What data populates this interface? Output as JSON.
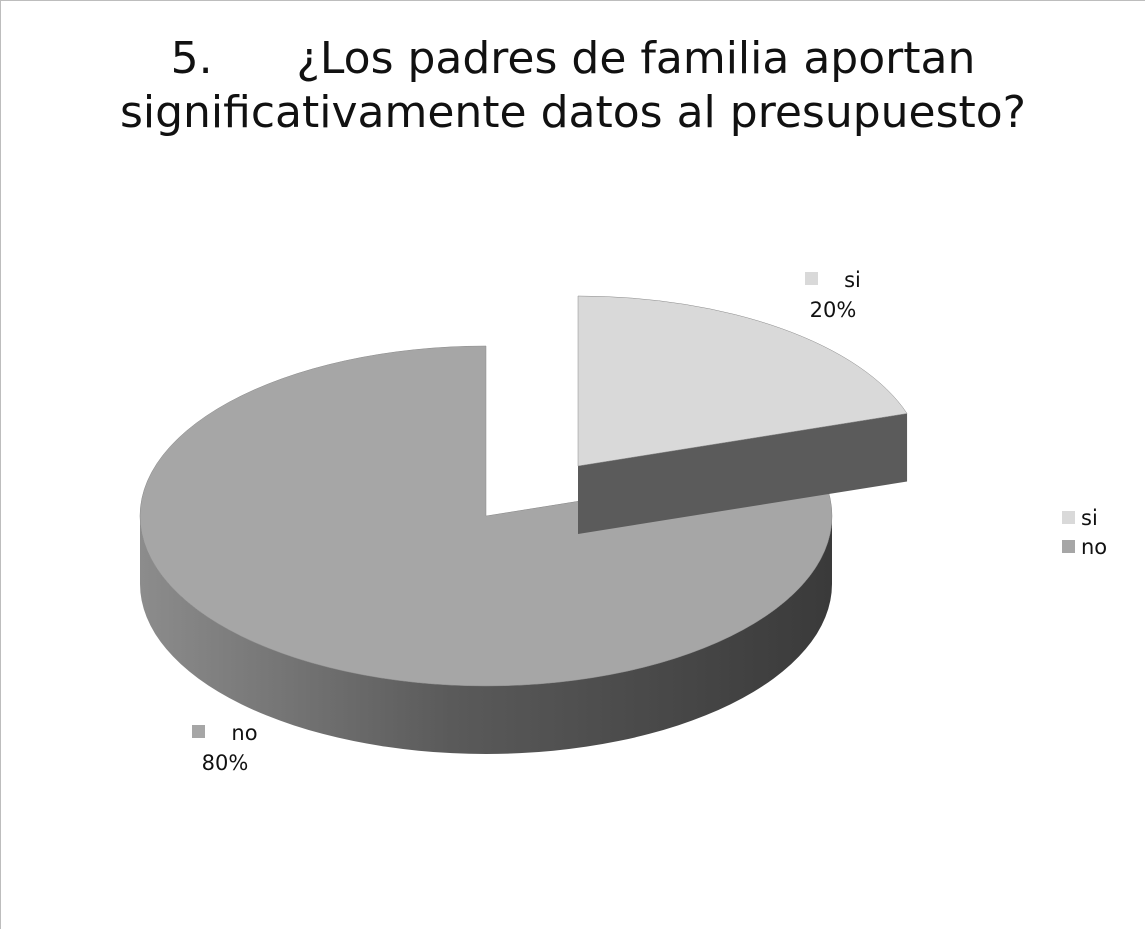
{
  "chart_data": {
    "type": "pie",
    "title_lines": [
      "5.      ¿Los padres de familia aportan",
      "significativamente datos al presupuesto?"
    ],
    "categories": [
      "si",
      "no"
    ],
    "values": [
      20,
      80
    ],
    "data_labels": [
      "20%",
      "80%"
    ],
    "colors": [
      "#d9d9d9",
      "#a6a6a6"
    ],
    "side_colors": [
      "#5b5b5b",
      "#404040"
    ],
    "legend": {
      "position": "right",
      "entries": [
        "si",
        "no"
      ]
    },
    "style": "3d-exploded"
  }
}
